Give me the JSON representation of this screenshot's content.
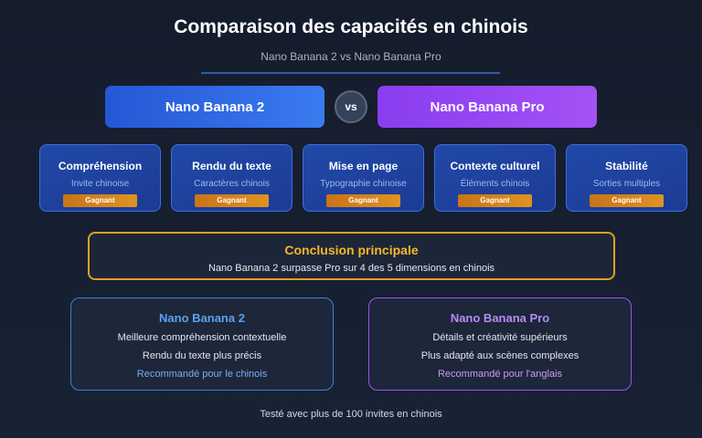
{
  "title": "Comparaison des capacités en chinois",
  "subtitle": "Nano Banana 2 vs Nano Banana Pro",
  "models": {
    "left": "Nano Banana 2",
    "vs": "vs",
    "right": "Nano Banana Pro"
  },
  "cards": [
    {
      "title": "Compréhension",
      "sub": "Invite chinoise",
      "badge": "Gagnant"
    },
    {
      "title": "Rendu du texte",
      "sub": "Caractères chinois",
      "badge": "Gagnant"
    },
    {
      "title": "Mise en page",
      "sub": "Typographie chinoise",
      "badge": "Gagnant"
    },
    {
      "title": "Contexte culturel",
      "sub": "Éléments chinois",
      "badge": "Gagnant"
    },
    {
      "title": "Stabilité",
      "sub": "Sorties multiples",
      "badge": "Gagnant"
    }
  ],
  "conclusion": {
    "title": "Conclusion principale",
    "text": "Nano Banana 2 surpasse Pro sur 4 des 5 dimensions en chinois"
  },
  "left_box": {
    "title": "Nano Banana 2",
    "lines": [
      "Meilleure compréhension contextuelle",
      "Rendu du texte plus précis"
    ],
    "recommend": "Recommandé pour le chinois"
  },
  "right_box": {
    "title": "Nano Banana Pro",
    "lines": [
      "Détails et créativité supérieurs",
      "Plus adapté aux scènes complexes"
    ],
    "recommend": "Recommandé pour l'anglais"
  },
  "footer": "Testé avec plus de 100 invites en chinois",
  "colors": {
    "accent_blue": "#3a7bf0",
    "accent_purple": "#a352f5",
    "badge": "#e09222",
    "conclusion": "#f5b82a"
  }
}
